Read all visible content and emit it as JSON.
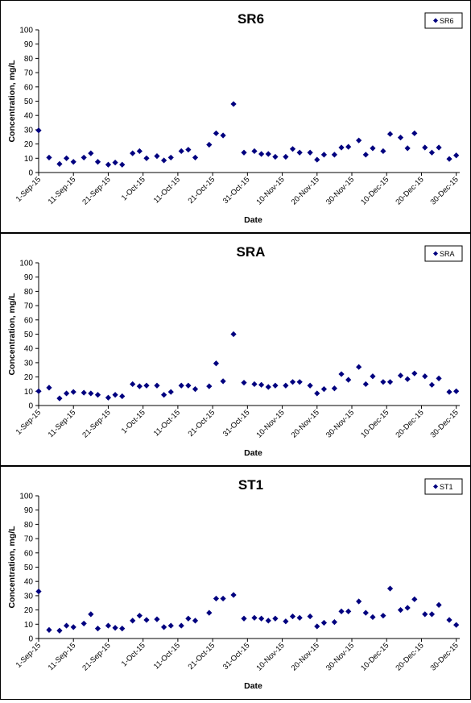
{
  "chart_data": [
    {
      "type": "scatter",
      "title": "SR6",
      "xlabel": "Date",
      "ylabel": "Concentration, mg/L",
      "ylim": [
        0,
        100
      ],
      "yticks": [
        0,
        10,
        20,
        30,
        40,
        50,
        60,
        70,
        80,
        90,
        100
      ],
      "xlim": [
        "2015-09-01",
        "2015-12-31"
      ],
      "xticks": [
        "1-Sep-15",
        "11-Sep-15",
        "21-Sep-15",
        "1-Oct-15",
        "11-Oct-15",
        "21-Oct-15",
        "31-Oct-15",
        "10-Nov-15",
        "20-Nov-15",
        "30-Nov-15",
        "10-Dec-15",
        "20-Dec-15",
        "30-Dec-15"
      ],
      "grid": false,
      "legend": "top-right",
      "marker_color": "#00007F",
      "series": [
        {
          "name": "SR6",
          "x": [
            "2015-09-01",
            "2015-09-04",
            "2015-09-07",
            "2015-09-09",
            "2015-09-11",
            "2015-09-14",
            "2015-09-16",
            "2015-09-18",
            "2015-09-21",
            "2015-09-23",
            "2015-09-25",
            "2015-09-28",
            "2015-09-30",
            "2015-10-02",
            "2015-10-05",
            "2015-10-07",
            "2015-10-09",
            "2015-10-12",
            "2015-10-14",
            "2015-10-16",
            "2015-10-20",
            "2015-10-22",
            "2015-10-24",
            "2015-10-27",
            "2015-10-30",
            "2015-11-02",
            "2015-11-04",
            "2015-11-06",
            "2015-11-08",
            "2015-11-11",
            "2015-11-13",
            "2015-11-15",
            "2015-11-18",
            "2015-11-20",
            "2015-11-22",
            "2015-11-25",
            "2015-11-27",
            "2015-11-29",
            "2015-12-02",
            "2015-12-04",
            "2015-12-06",
            "2015-12-09",
            "2015-12-11",
            "2015-12-14",
            "2015-12-16",
            "2015-12-18",
            "2015-12-21",
            "2015-12-23",
            "2015-12-25",
            "2015-12-28",
            "2015-12-30"
          ],
          "y": [
            29.5,
            10.5,
            6,
            10,
            7.5,
            10.5,
            13.5,
            7.5,
            5.5,
            7,
            5.5,
            13.5,
            15,
            10,
            11.5,
            8.5,
            10.5,
            15,
            16,
            10.5,
            19.5,
            27.5,
            26,
            48,
            14,
            15,
            13,
            13,
            11,
            11,
            16.5,
            14,
            14,
            9,
            12.5,
            12.5,
            17.5,
            18,
            22.5,
            12.5,
            17,
            15,
            27,
            24.5,
            17,
            27.5,
            17.5,
            14,
            17.5,
            9.5,
            12
          ]
        }
      ]
    },
    {
      "type": "scatter",
      "title": "SRA",
      "xlabel": "Date",
      "ylabel": "Concentration, mg/L",
      "ylim": [
        0,
        100
      ],
      "yticks": [
        0,
        10,
        20,
        30,
        40,
        50,
        60,
        70,
        80,
        90,
        100
      ],
      "xlim": [
        "2015-09-01",
        "2015-12-31"
      ],
      "xticks": [
        "1-Sep-15",
        "11-Sep-15",
        "21-Sep-15",
        "1-Oct-15",
        "11-Oct-15",
        "21-Oct-15",
        "31-Oct-15",
        "10-Nov-15",
        "20-Nov-15",
        "30-Nov-15",
        "10-Dec-15",
        "20-Dec-15",
        "30-Dec-15"
      ],
      "grid": false,
      "legend": "top-right",
      "marker_color": "#00007F",
      "series": [
        {
          "name": "SRA",
          "x": [
            "2015-09-01",
            "2015-09-04",
            "2015-09-07",
            "2015-09-09",
            "2015-09-11",
            "2015-09-14",
            "2015-09-16",
            "2015-09-18",
            "2015-09-21",
            "2015-09-23",
            "2015-09-25",
            "2015-09-28",
            "2015-09-30",
            "2015-10-02",
            "2015-10-05",
            "2015-10-07",
            "2015-10-09",
            "2015-10-12",
            "2015-10-14",
            "2015-10-16",
            "2015-10-20",
            "2015-10-22",
            "2015-10-24",
            "2015-10-27",
            "2015-10-30",
            "2015-11-02",
            "2015-11-04",
            "2015-11-06",
            "2015-11-08",
            "2015-11-11",
            "2015-11-13",
            "2015-11-15",
            "2015-11-18",
            "2015-11-20",
            "2015-11-22",
            "2015-11-25",
            "2015-11-27",
            "2015-11-29",
            "2015-12-02",
            "2015-12-04",
            "2015-12-06",
            "2015-12-09",
            "2015-12-11",
            "2015-12-14",
            "2015-12-16",
            "2015-12-18",
            "2015-12-21",
            "2015-12-23",
            "2015-12-25",
            "2015-12-28",
            "2015-12-30"
          ],
          "y": [
            10,
            12.5,
            5,
            8.5,
            9.5,
            9,
            8.5,
            7.5,
            5.5,
            7.5,
            6.5,
            15,
            13.5,
            14,
            14,
            7.5,
            9.5,
            14,
            14,
            11.5,
            13.5,
            29.5,
            17,
            50,
            16,
            15,
            14.5,
            13,
            14,
            14,
            16.5,
            16.5,
            14,
            8.5,
            11.5,
            12,
            22,
            18,
            27,
            15,
            20.5,
            16.5,
            16.5,
            21,
            18.5,
            22.5,
            20.5,
            14.5,
            19,
            9.5,
            10
          ]
        }
      ]
    },
    {
      "type": "scatter",
      "title": "ST1",
      "xlabel": "Date",
      "ylabel": "Concentration, mg/L",
      "ylim": [
        0,
        100
      ],
      "yticks": [
        0,
        10,
        20,
        30,
        40,
        50,
        60,
        70,
        80,
        90,
        100
      ],
      "xlim": [
        "2015-09-01",
        "2015-12-31"
      ],
      "xticks": [
        "1-Sep-15",
        "11-Sep-15",
        "21-Sep-15",
        "1-Oct-15",
        "11-Oct-15",
        "21-Oct-15",
        "31-Oct-15",
        "10-Nov-15",
        "20-Nov-15",
        "30-Nov-15",
        "10-Dec-15",
        "20-Dec-15",
        "30-Dec-15"
      ],
      "grid": false,
      "legend": "top-right",
      "marker_color": "#00007F",
      "series": [
        {
          "name": "ST1",
          "x": [
            "2015-09-01",
            "2015-09-04",
            "2015-09-07",
            "2015-09-09",
            "2015-09-11",
            "2015-09-14",
            "2015-09-16",
            "2015-09-18",
            "2015-09-21",
            "2015-09-23",
            "2015-09-25",
            "2015-09-28",
            "2015-09-30",
            "2015-10-02",
            "2015-10-05",
            "2015-10-07",
            "2015-10-09",
            "2015-10-12",
            "2015-10-14",
            "2015-10-16",
            "2015-10-20",
            "2015-10-22",
            "2015-10-24",
            "2015-10-27",
            "2015-10-30",
            "2015-11-02",
            "2015-11-04",
            "2015-11-06",
            "2015-11-08",
            "2015-11-11",
            "2015-11-13",
            "2015-11-15",
            "2015-11-18",
            "2015-11-20",
            "2015-11-22",
            "2015-11-25",
            "2015-11-27",
            "2015-11-29",
            "2015-12-02",
            "2015-12-04",
            "2015-12-06",
            "2015-12-09",
            "2015-12-11",
            "2015-12-14",
            "2015-12-16",
            "2015-12-18",
            "2015-12-21",
            "2015-12-23",
            "2015-12-25",
            "2015-12-28",
            "2015-12-30"
          ],
          "y": [
            33,
            6,
            5.5,
            9,
            8,
            10.5,
            17,
            7,
            9,
            7.5,
            7,
            12.5,
            16,
            13,
            13.5,
            8,
            9,
            9,
            14,
            12.5,
            18,
            28,
            28,
            30.5,
            14,
            14.5,
            14,
            12.5,
            14,
            12,
            15.5,
            14.5,
            15.5,
            8.5,
            11,
            11.5,
            19,
            19,
            26,
            18,
            15,
            16,
            35,
            20,
            21.5,
            27.5,
            17,
            17,
            23.5,
            13,
            9.5
          ]
        }
      ]
    }
  ]
}
